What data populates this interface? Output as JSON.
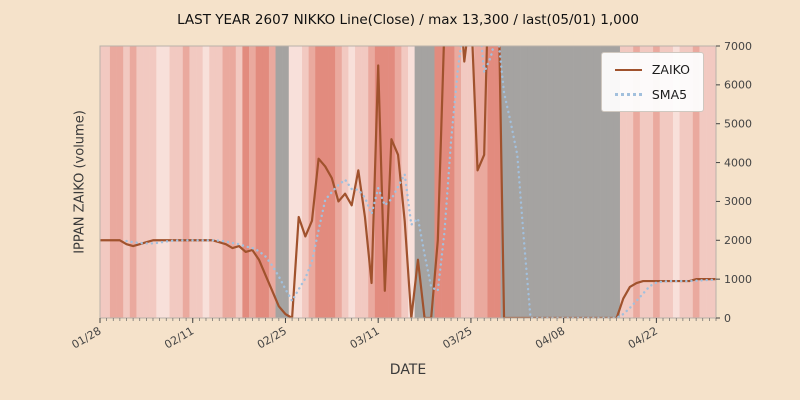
{
  "title": "LAST YEAR 2607 NIKKO Line(Close) / max 13,300 / last(05/01) 1,000",
  "xlabel": "DATE",
  "ylabel": "IPPAN ZAIKO (volume)",
  "legend": [
    {
      "label": "ZAIKO",
      "color": "#a0522d",
      "style": "solid"
    },
    {
      "label": "SMA5",
      "color": "#a2c0dd",
      "style": "dotted"
    }
  ],
  "colors": {
    "figure_bg": "#f5e2ca",
    "plot_bg": "#f6ebe7",
    "plot_border": "#b9b1a9",
    "tick_label": "#444444",
    "zaiko_line": "#a0522d",
    "sma5_line": "#a2c0dd"
  },
  "chart_data": {
    "type": "line",
    "title": "LAST YEAR 2607 NIKKO Line(Close) / max 13,300 / last(05/01) 1,000",
    "xlabel": "DATE",
    "ylabel": "IPPAN ZAIKO (volume)",
    "ylim": [
      0,
      7000
    ],
    "y_ticks": [
      0,
      1000,
      2000,
      3000,
      4000,
      5000,
      6000,
      7000
    ],
    "x_ticks": [
      "01/28",
      "02/11",
      "02/25",
      "03/11",
      "03/25",
      "04/08",
      "04/22"
    ],
    "grid": false,
    "legend_position": "upper right",
    "x": [
      "01/28",
      "01/29",
      "01/30",
      "01/31",
      "02/01",
      "02/02",
      "02/03",
      "02/04",
      "02/05",
      "02/06",
      "02/07",
      "02/08",
      "02/09",
      "02/10",
      "02/11",
      "02/12",
      "02/13",
      "02/14",
      "02/15",
      "02/16",
      "02/17",
      "02/18",
      "02/19",
      "02/20",
      "02/21",
      "02/22",
      "02/23",
      "02/24",
      "02/25",
      "02/26",
      "02/27",
      "02/28",
      "03/01",
      "03/02",
      "03/03",
      "03/04",
      "03/05",
      "03/06",
      "03/07",
      "03/08",
      "03/09",
      "03/10",
      "03/11",
      "03/12",
      "03/13",
      "03/14",
      "03/15",
      "03/16",
      "03/17",
      "03/18",
      "03/19",
      "03/20",
      "03/21",
      "03/22",
      "03/23",
      "03/24",
      "03/25",
      "03/26",
      "03/27",
      "03/28",
      "03/29",
      "03/30",
      "03/31",
      "04/01",
      "04/02",
      "04/03",
      "04/04",
      "04/05",
      "04/06",
      "04/07",
      "04/08",
      "04/09",
      "04/10",
      "04/11",
      "04/12",
      "04/13",
      "04/14",
      "04/15",
      "04/16",
      "04/17",
      "04/18",
      "04/19",
      "04/20",
      "04/21",
      "04/22",
      "04/23",
      "04/24",
      "04/25",
      "04/26",
      "04/27",
      "04/28",
      "04/29",
      "04/30",
      "05/01"
    ],
    "series": [
      {
        "name": "ZAIKO",
        "style": "solid",
        "color": "#a0522d",
        "values": [
          2000,
          2000,
          2000,
          2000,
          1900,
          1850,
          1900,
          1950,
          2000,
          2000,
          2000,
          2000,
          2000,
          2000,
          2000,
          2000,
          2000,
          2000,
          1950,
          1900,
          1800,
          1850,
          1700,
          1750,
          1500,
          1100,
          700,
          300,
          100,
          0,
          2600,
          2100,
          2500,
          4100,
          3900,
          3600,
          3000,
          3200,
          2900,
          3800,
          2600,
          900,
          6500,
          700,
          4600,
          4200,
          2500,
          0,
          1500,
          0,
          0,
          2000,
          7500,
          13300,
          9000,
          6600,
          8000,
          3800,
          4200,
          11000,
          10000,
          0,
          0,
          0,
          0,
          0,
          0,
          0,
          0,
          0,
          0,
          0,
          0,
          0,
          0,
          0,
          0,
          0,
          0,
          500,
          800,
          900,
          950,
          950,
          950,
          950,
          950,
          950,
          950,
          950,
          1000,
          1000,
          1000,
          1000
        ]
      },
      {
        "name": "SMA5",
        "style": "dotted",
        "color": "#a2c0dd",
        "derived_from": "ZAIKO",
        "window": 5
      }
    ],
    "band_palette": {
      "p1": "#f8e0da",
      "p2": "#f2c9c1",
      "p3": "#eaa99e",
      "p4": "#e28b7e",
      "gray": "#a5a3a1"
    },
    "band_colors_by_day": [
      "p2",
      "p2",
      "p3",
      "p3",
      "p2",
      "p3",
      "p2",
      "p2",
      "p2",
      "p1",
      "p1",
      "p2",
      "p2",
      "p3",
      "p2",
      "p2",
      "p1",
      "p2",
      "p2",
      "p3",
      "p3",
      "p2",
      "p4",
      "p3",
      "p4",
      "p4",
      "p3",
      "gray",
      "gray",
      "p1",
      "p1",
      "p2",
      "p3",
      "p4",
      "p4",
      "p4",
      "p3",
      "p2",
      "p1",
      "p2",
      "p2",
      "p3",
      "p4",
      "p4",
      "p4",
      "p3",
      "p2",
      "p1",
      "gray",
      "gray",
      "gray",
      "p4",
      "p4",
      "p4",
      "p3",
      "p2",
      "p2",
      "p3",
      "p3",
      "p4",
      "p4",
      "gray",
      "gray",
      "gray",
      "gray",
      "gray",
      "gray",
      "gray",
      "gray",
      "gray",
      "gray",
      "gray",
      "gray",
      "gray",
      "gray",
      "gray",
      "gray",
      "gray",
      "gray",
      "p2",
      "p2",
      "p3",
      "p2",
      "p2",
      "p3",
      "p2",
      "p2",
      "p1",
      "p2",
      "p2",
      "p3",
      "p2",
      "p2",
      "p2"
    ]
  }
}
